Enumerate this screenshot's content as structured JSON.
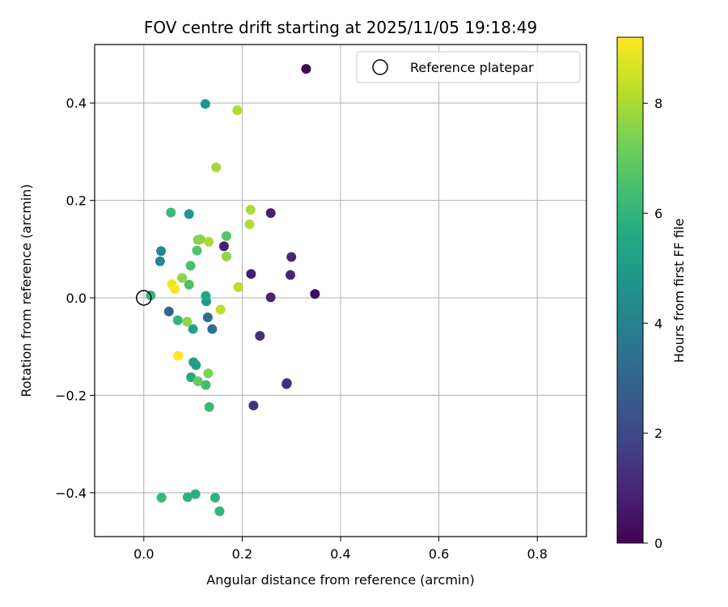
{
  "chart_data": {
    "type": "scatter",
    "title": "FOV centre drift starting at 2025/11/05 19:18:49",
    "xlabel": "Angular distance from reference (arcmin)",
    "ylabel": "Rotation from reference (arcmin)",
    "xlim": [
      -0.1,
      0.9
    ],
    "ylim": [
      -0.49,
      0.52
    ],
    "xticks": [
      0.0,
      0.2,
      0.4,
      0.6,
      0.8
    ],
    "xtick_labels": [
      "0.0",
      "0.2",
      "0.4",
      "0.6",
      "0.8"
    ],
    "yticks": [
      -0.4,
      -0.2,
      0.0,
      0.2,
      0.4
    ],
    "ytick_labels": [
      "−0.4",
      "−0.2",
      "0.0",
      "0.2",
      "0.4"
    ],
    "grid": true,
    "legend": {
      "label": "Reference platepar",
      "placement": "top-right"
    },
    "reference_point": {
      "x": 0.0,
      "y": 0.0
    },
    "colorbar": {
      "label": "Hours from first FF file",
      "min": 0,
      "max": 9.2,
      "ticks": [
        0,
        2,
        4,
        6,
        8
      ],
      "tick_labels": [
        "0",
        "2",
        "4",
        "6",
        "8"
      ],
      "colormap": "viridis"
    },
    "points": [
      {
        "x": 0.33,
        "y": 0.47,
        "h": 0.0
      },
      {
        "x": 0.348,
        "y": 0.008,
        "h": 0.3
      },
      {
        "x": 0.258,
        "y": 0.174,
        "h": 0.8
      },
      {
        "x": 0.3,
        "y": 0.084,
        "h": 1.0
      },
      {
        "x": 0.298,
        "y": 0.047,
        "h": 1.0
      },
      {
        "x": 0.258,
        "y": 0.001,
        "h": 0.9
      },
      {
        "x": 0.218,
        "y": 0.049,
        "h": 0.8
      },
      {
        "x": 0.163,
        "y": 0.106,
        "h": 0.8
      },
      {
        "x": 0.236,
        "y": -0.078,
        "h": 1.2
      },
      {
        "x": 0.291,
        "y": -0.175,
        "h": 1.0
      },
      {
        "x": 0.29,
        "y": -0.177,
        "h": 1.2
      },
      {
        "x": 0.223,
        "y": -0.221,
        "h": 1.3
      },
      {
        "x": 0.051,
        "y": -0.028,
        "h": 3.1
      },
      {
        "x": 0.139,
        "y": -0.064,
        "h": 3.3
      },
      {
        "x": 0.13,
        "y": -0.04,
        "h": 3.4
      },
      {
        "x": 0.035,
        "y": 0.096,
        "h": 4.3
      },
      {
        "x": 0.033,
        "y": 0.075,
        "h": 4.2
      },
      {
        "x": 0.125,
        "y": 0.398,
        "h": 4.7
      },
      {
        "x": 0.092,
        "y": 0.172,
        "h": 4.8
      },
      {
        "x": 0.127,
        "y": -0.007,
        "h": 5.0
      },
      {
        "x": 0.101,
        "y": -0.132,
        "h": 5.1
      },
      {
        "x": 0.106,
        "y": -0.138,
        "h": 5.2
      },
      {
        "x": 0.1,
        "y": -0.064,
        "h": 5.3
      },
      {
        "x": 0.126,
        "y": 0.004,
        "h": 5.5
      },
      {
        "x": 0.096,
        "y": -0.163,
        "h": 5.6
      },
      {
        "x": 0.014,
        "y": 0.005,
        "h": 6.0
      },
      {
        "x": 0.069,
        "y": -0.046,
        "h": 6.0
      },
      {
        "x": 0.055,
        "y": 0.175,
        "h": 6.2
      },
      {
        "x": 0.036,
        "y": -0.41,
        "h": 6.1
      },
      {
        "x": 0.089,
        "y": -0.409,
        "h": 5.9
      },
      {
        "x": 0.105,
        "y": -0.403,
        "h": 5.8
      },
      {
        "x": 0.145,
        "y": -0.41,
        "h": 5.9
      },
      {
        "x": 0.154,
        "y": -0.438,
        "h": 6.0
      },
      {
        "x": 0.133,
        "y": -0.224,
        "h": 6.2
      },
      {
        "x": 0.126,
        "y": -0.179,
        "h": 6.3
      },
      {
        "x": 0.092,
        "y": 0.027,
        "h": 6.5
      },
      {
        "x": 0.095,
        "y": 0.066,
        "h": 6.5
      },
      {
        "x": 0.108,
        "y": 0.097,
        "h": 6.6
      },
      {
        "x": 0.168,
        "y": 0.127,
        "h": 6.8
      },
      {
        "x": 0.11,
        "y": -0.171,
        "h": 7.0
      },
      {
        "x": 0.131,
        "y": -0.155,
        "h": 7.4
      },
      {
        "x": 0.088,
        "y": -0.049,
        "h": 7.6
      },
      {
        "x": 0.078,
        "y": 0.041,
        "h": 7.6
      },
      {
        "x": 0.11,
        "y": 0.119,
        "h": 7.4
      },
      {
        "x": 0.115,
        "y": 0.12,
        "h": 7.6
      },
      {
        "x": 0.168,
        "y": 0.085,
        "h": 7.7
      },
      {
        "x": 0.132,
        "y": 0.115,
        "h": 8.0
      },
      {
        "x": 0.147,
        "y": 0.268,
        "h": 7.9
      },
      {
        "x": 0.19,
        "y": 0.385,
        "h": 8.1
      },
      {
        "x": 0.217,
        "y": 0.181,
        "h": 8.0
      },
      {
        "x": 0.215,
        "y": 0.151,
        "h": 8.1
      },
      {
        "x": 0.192,
        "y": 0.022,
        "h": 8.2
      },
      {
        "x": 0.156,
        "y": -0.024,
        "h": 8.3
      },
      {
        "x": 0.057,
        "y": 0.028,
        "h": 9.0
      },
      {
        "x": 0.063,
        "y": 0.018,
        "h": 9.1
      },
      {
        "x": 0.07,
        "y": -0.119,
        "h": 9.2
      }
    ]
  }
}
